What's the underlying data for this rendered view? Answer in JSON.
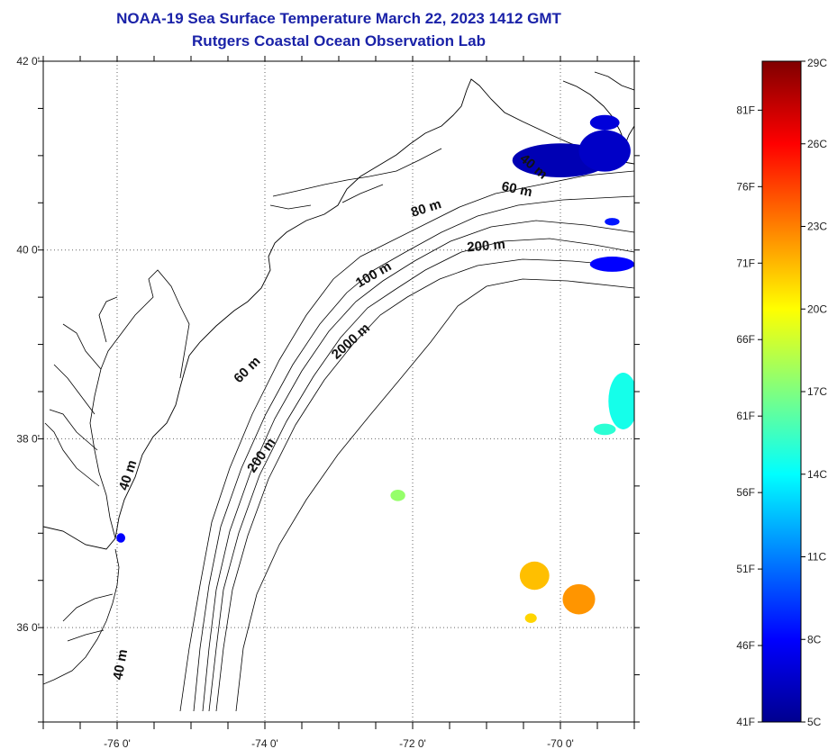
{
  "title": "NOAA-19 Sea Surface Temperature March 22, 2023 1412 GMT",
  "subtitle": "Rutgers Coastal Ocean Observation Lab",
  "map": {
    "lon_range": [
      -77.0,
      -69.0
    ],
    "lat_range": [
      35.0,
      42.0
    ],
    "lon_ticks": [
      {
        "value": -76,
        "label": "-76 0'"
      },
      {
        "value": -74,
        "label": "-74 0'"
      },
      {
        "value": -72,
        "label": "-72 0'"
      },
      {
        "value": -70,
        "label": "-70 0'"
      }
    ],
    "lat_ticks": [
      {
        "value": 42,
        "label": "42 0'"
      },
      {
        "value": 40,
        "label": "40 0'"
      },
      {
        "value": 38,
        "label": "38 0'"
      },
      {
        "value": 36,
        "label": "36 0'"
      }
    ],
    "grid": "dotted",
    "isobath_labels": [
      {
        "text": "40 m",
        "lon": -75.8,
        "lat": 37.6,
        "angle": -72
      },
      {
        "text": "40 m",
        "lon": -75.9,
        "lat": 35.6,
        "angle": -80
      },
      {
        "text": "60 m",
        "lon": -74.2,
        "lat": 38.7,
        "angle": -45
      },
      {
        "text": "200 m",
        "lon": -74.0,
        "lat": 37.8,
        "angle": -55
      },
      {
        "text": "2000 m",
        "lon": -72.8,
        "lat": 39.0,
        "angle": -42
      },
      {
        "text": "100 m",
        "lon": -72.5,
        "lat": 39.7,
        "angle": -30
      },
      {
        "text": "80 m",
        "lon": -71.8,
        "lat": 40.4,
        "angle": -18
      },
      {
        "text": "200 m",
        "lon": -71.0,
        "lat": 40.0,
        "angle": -5
      },
      {
        "text": "60 m",
        "lon": -70.6,
        "lat": 40.6,
        "angle": 12
      },
      {
        "text": "40 m",
        "lon": -70.4,
        "lat": 40.85,
        "angle": 40
      }
    ],
    "sst_patches": [
      {
        "lon": -70.0,
        "lat": 40.95,
        "rx": 0.65,
        "ry": 0.18,
        "temp_c": 6.0
      },
      {
        "lon": -69.4,
        "lat": 41.05,
        "rx": 0.35,
        "ry": 0.22,
        "temp_c": 6.5
      },
      {
        "lon": -69.4,
        "lat": 41.35,
        "rx": 0.2,
        "ry": 0.08,
        "temp_c": 7.0
      },
      {
        "lon": -69.3,
        "lat": 39.85,
        "rx": 0.3,
        "ry": 0.08,
        "temp_c": 8.0
      },
      {
        "lon": -69.3,
        "lat": 40.3,
        "rx": 0.1,
        "ry": 0.04,
        "temp_c": 8.5
      },
      {
        "lon": -69.15,
        "lat": 38.4,
        "rx": 0.2,
        "ry": 0.3,
        "temp_c": 14.5
      },
      {
        "lon": -69.4,
        "lat": 38.1,
        "rx": 0.15,
        "ry": 0.06,
        "temp_c": 15.0
      },
      {
        "lon": -72.2,
        "lat": 37.4,
        "rx": 0.1,
        "ry": 0.06,
        "temp_c": 17.5
      },
      {
        "lon": -70.35,
        "lat": 36.55,
        "rx": 0.2,
        "ry": 0.15,
        "temp_c": 21.5
      },
      {
        "lon": -69.75,
        "lat": 36.3,
        "rx": 0.22,
        "ry": 0.16,
        "temp_c": 22.5
      },
      {
        "lon": -70.4,
        "lat": 36.1,
        "rx": 0.08,
        "ry": 0.05,
        "temp_c": 21.0
      },
      {
        "lon": -75.95,
        "lat": 36.95,
        "rx": 0.06,
        "ry": 0.05,
        "temp_c": 8.0
      }
    ]
  },
  "colorbar": {
    "min_c": 5,
    "max_c": 29,
    "celsius_labels": [
      "29C",
      "26C",
      "23C",
      "20C",
      "17C",
      "14C",
      "11C",
      "8C",
      "5C"
    ],
    "celsius_values": [
      29,
      26,
      23,
      20,
      17,
      14,
      11,
      8,
      5
    ],
    "fahrenheit_labels": [
      "81F",
      "76F",
      "71F",
      "66F",
      "61F",
      "56F",
      "51F",
      "46F",
      "41F"
    ],
    "fahrenheit_values": [
      81,
      76,
      71,
      66,
      61,
      56,
      51,
      46,
      41
    ],
    "colormap": [
      "#00008f",
      "#0000ff",
      "#00ffff",
      "#ffff00",
      "#ff0000",
      "#800000"
    ]
  }
}
